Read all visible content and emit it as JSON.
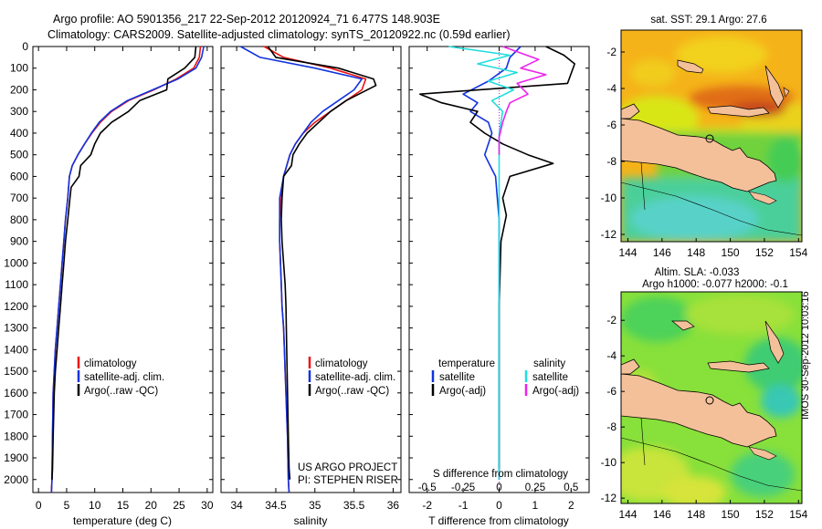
{
  "title": {
    "line1": "Argo profile: AO 5901356_217 22-Sep-2012 20120924_71 6.477S 148.903E",
    "line2": "Climatology: CARS2009. Satellite-adjusted climatology: synTS_20120922.nc (0.59d earlier)"
  },
  "colors": {
    "climatology": "#ee1111",
    "satellite": "#1133dd",
    "argo": "#000000",
    "argo_sal_adj": "#ee22ee",
    "sat_sal": "#22dddd",
    "land": "#f4c09a"
  },
  "credit": {
    "project": "US ARGO PROJECT",
    "pi": "PI: STEPHEN RISER"
  },
  "stamp": "IMOS 30-Sep-2012 10:03:16",
  "chart_data": [
    {
      "type": "line",
      "name": "temperature",
      "xlabel": "temperature (deg C)",
      "ylabel": "depth",
      "xlim": [
        -1,
        31
      ],
      "ylim": [
        2060,
        0
      ],
      "xticks": [
        "0",
        "5",
        "10",
        "15",
        "20",
        "25",
        "30"
      ],
      "xtick_values": [
        0,
        5,
        10,
        15,
        20,
        25,
        30
      ],
      "yticks": [
        "0",
        "100",
        "200",
        "300",
        "400",
        "500",
        "600",
        "700",
        "800",
        "900",
        "1000",
        "1100",
        "1200",
        "1300",
        "1400",
        "1500",
        "1600",
        "1700",
        "1800",
        "1900",
        "2000"
      ],
      "ytick_values": [
        0,
        100,
        200,
        300,
        400,
        500,
        600,
        700,
        800,
        900,
        1000,
        1100,
        1200,
        1300,
        1400,
        1500,
        1600,
        1700,
        1800,
        1900,
        2000
      ],
      "legend": [
        "climatology",
        "satellite-adj. clim.",
        "Argo(..raw -QC)"
      ],
      "series": [
        {
          "name": "climatology",
          "color": "#ee1111",
          "x": [
            28.8,
            28.6,
            27.6,
            24.5,
            20.5,
            16.0,
            13.0,
            11.0,
            9.5,
            8.2,
            7.0,
            6.0,
            5.5,
            5.2,
            4.8,
            4.5,
            4.2,
            3.9,
            3.6,
            3.3,
            3.0,
            2.8,
            2.6,
            2.5,
            2.4,
            2.3
          ],
          "y": [
            0,
            50,
            100,
            150,
            200,
            250,
            300,
            350,
            400,
            450,
            500,
            550,
            600,
            700,
            800,
            900,
            1000,
            1100,
            1200,
            1300,
            1400,
            1500,
            1600,
            1800,
            2000,
            2060
          ]
        },
        {
          "name": "satellite",
          "color": "#1133dd",
          "x": [
            29.4,
            29.0,
            28.0,
            24.8,
            20.3,
            15.8,
            12.8,
            10.8,
            9.4,
            8.2,
            7.0,
            6.0,
            5.5,
            5.2,
            4.8,
            4.5,
            4.2,
            3.9,
            3.6,
            3.3,
            3.0,
            2.8,
            2.6,
            2.5,
            2.4,
            2.3
          ],
          "y": [
            0,
            50,
            100,
            150,
            200,
            250,
            300,
            350,
            400,
            450,
            500,
            550,
            600,
            700,
            800,
            900,
            1000,
            1100,
            1200,
            1300,
            1400,
            1500,
            1600,
            1800,
            2000,
            2060
          ]
        },
        {
          "name": "argo",
          "color": "#000000",
          "x": [
            28.0,
            27.8,
            26.0,
            23.0,
            22.8,
            18.0,
            16.0,
            13.0,
            11.0,
            10.0,
            9.3,
            7.5,
            7.2,
            5.8,
            5.6,
            5.2,
            4.8,
            4.5,
            4.2,
            3.9,
            3.6,
            3.3,
            3.0,
            2.8,
            2.6,
            2.5,
            2.4
          ],
          "y": [
            0,
            50,
            100,
            150,
            200,
            250,
            300,
            350,
            400,
            450,
            500,
            550,
            600,
            650,
            700,
            800,
            900,
            1000,
            1100,
            1200,
            1300,
            1400,
            1500,
            1600,
            1800,
            1950,
            2000
          ]
        }
      ]
    },
    {
      "type": "line",
      "name": "salinity",
      "xlabel": "salinity",
      "xlim": [
        33.8,
        36.1
      ],
      "ylim": [
        2060,
        0
      ],
      "xticks": [
        "34",
        "34.5",
        "35",
        "35.5",
        "36"
      ],
      "xtick_values": [
        34,
        34.5,
        35,
        35.5,
        36
      ],
      "legend": [
        "climatology",
        "satellite-adj. clim.",
        "Argo(..raw -QC)"
      ],
      "series": [
        {
          "name": "climatology",
          "color": "#ee1111",
          "x": [
            34.35,
            34.6,
            35.2,
            35.65,
            35.6,
            35.4,
            35.2,
            35.0,
            34.85,
            34.75,
            34.68,
            34.6,
            34.57,
            34.55,
            34.55,
            34.56,
            34.57,
            34.58,
            34.6,
            34.61,
            34.62,
            34.63,
            34.64,
            34.65,
            34.66,
            34.67
          ],
          "y": [
            0,
            50,
            100,
            150,
            200,
            250,
            300,
            350,
            400,
            450,
            500,
            600,
            700,
            800,
            900,
            1000,
            1100,
            1200,
            1300,
            1400,
            1500,
            1600,
            1700,
            1800,
            2000,
            2060
          ]
        },
        {
          "name": "satellite",
          "color": "#1133dd",
          "x": [
            34.05,
            34.3,
            35.0,
            35.6,
            35.5,
            35.3,
            35.1,
            34.95,
            34.85,
            34.75,
            34.68,
            34.6,
            34.55,
            34.55,
            34.55,
            34.56,
            34.57,
            34.58,
            34.6,
            34.61,
            34.62,
            34.63,
            34.64,
            34.65,
            34.66,
            34.67
          ],
          "y": [
            0,
            50,
            100,
            150,
            200,
            250,
            300,
            350,
            400,
            450,
            500,
            600,
            700,
            800,
            900,
            1000,
            1100,
            1200,
            1300,
            1400,
            1500,
            1600,
            1700,
            1800,
            2000,
            2060
          ]
        },
        {
          "name": "argo",
          "color": "#000000",
          "x": [
            34.4,
            34.5,
            35.3,
            35.75,
            35.78,
            35.4,
            35.2,
            35.05,
            34.9,
            34.8,
            34.72,
            34.7,
            34.6,
            34.58,
            34.57,
            34.58,
            34.6,
            34.62,
            34.63,
            34.64,
            34.65,
            34.66,
            34.67,
            34.68
          ],
          "y": [
            0,
            50,
            100,
            150,
            180,
            250,
            300,
            350,
            400,
            450,
            500,
            550,
            600,
            700,
            800,
            900,
            1000,
            1100,
            1200,
            1400,
            1600,
            1800,
            1950,
            2000
          ]
        }
      ]
    },
    {
      "type": "line",
      "name": "difference",
      "xlabel": "T difference from climatology",
      "xlabel_top": "S difference from climatology",
      "xlim": [
        -2.5,
        2.5
      ],
      "ylim": [
        2060,
        0
      ],
      "xticks": [
        "-2",
        "-1",
        "0",
        "1",
        "2"
      ],
      "xtick_values": [
        -2,
        -1,
        0,
        1,
        2
      ],
      "sticks": [
        "-0.5",
        "-0.25",
        "0",
        "0.25",
        "0.5"
      ],
      "stick_values": [
        -2,
        -1,
        0,
        1,
        2
      ],
      "legend_titles": [
        "temperature",
        "salinity"
      ],
      "legend": [
        "satellite",
        "Argo(-adj)",
        "satellite",
        "Argo(-adj)"
      ],
      "series": [
        {
          "name": "T satellite",
          "color": "#1133dd",
          "x": [
            0.6,
            0.3,
            0.2,
            -0.3,
            -1.0,
            -0.6,
            -0.8,
            -0.3,
            -0.2,
            -0.3,
            -0.4,
            -0.25,
            -0.1,
            -0.05,
            0,
            0,
            0,
            0
          ],
          "y": [
            0,
            50,
            100,
            160,
            220,
            260,
            300,
            350,
            400,
            450,
            500,
            550,
            600,
            700,
            800,
            1000,
            1500,
            2000
          ]
        },
        {
          "name": "T argo",
          "color": "#000000",
          "x": [
            1.3,
            1.8,
            2.1,
            1.9,
            -2.2,
            -1.6,
            -0.6,
            -0.8,
            -0.4,
            0.1,
            0.8,
            1.5,
            0.3,
            0.1,
            0.2,
            0.05,
            0,
            0,
            0
          ],
          "y": [
            0,
            40,
            80,
            170,
            220,
            260,
            300,
            350,
            400,
            450,
            500,
            540,
            600,
            700,
            780,
            900,
            1200,
            1600,
            1950
          ]
        },
        {
          "name": "S satellite",
          "color": "#22dddd",
          "x": [
            -1.4,
            0.3,
            -0.6,
            0.5,
            -0.3,
            0.4,
            -0.2,
            0.1,
            0,
            0,
            0,
            0,
            0
          ],
          "y": [
            0,
            40,
            80,
            120,
            160,
            200,
            250,
            300,
            400,
            500,
            800,
            1500,
            2000
          ]
        },
        {
          "name": "S argo",
          "color": "#ee22ee",
          "x": [
            0.1,
            1.1,
            0.6,
            1.3,
            0.5,
            0.8,
            0.3,
            0.2,
            0.1,
            0,
            0
          ],
          "y": [
            0,
            60,
            100,
            130,
            170,
            220,
            260,
            300,
            350,
            420,
            500
          ]
        }
      ]
    },
    {
      "type": "heatmap",
      "name": "sst_map",
      "title": "sat. SST: 29.1 Argo: 27.6",
      "xticks": [
        "144",
        "146",
        "148",
        "150",
        "152",
        "154"
      ],
      "xtick_values": [
        144,
        146,
        148,
        150,
        152,
        154
      ],
      "yticks": [
        "-2",
        "-4",
        "-6",
        "-8",
        "-10",
        "-12"
      ],
      "ytick_values": [
        -2,
        -4,
        -6,
        -8,
        -10,
        -12
      ],
      "xlim": [
        143.6,
        154.2
      ],
      "ylim": [
        -0.8,
        -12.4
      ],
      "argo_position": [
        148.9,
        -6.48
      ]
    },
    {
      "type": "heatmap",
      "name": "sla_map",
      "title1": "Altim. SLA: -0.033",
      "title2": "Argo h1000: -0.077 h2000: -0.1",
      "xticks": [
        "144",
        "146",
        "148",
        "150",
        "152",
        "154"
      ],
      "xtick_values": [
        144,
        146,
        148,
        150,
        152,
        154
      ],
      "yticks": [
        "-2",
        "-4",
        "-6",
        "-8",
        "-10",
        "-12"
      ],
      "ytick_values": [
        -2,
        -4,
        -6,
        -8,
        -10,
        -12
      ],
      "xlim": [
        143.6,
        154.2
      ],
      "ylim": [
        -0.4,
        -12.3
      ],
      "argo_position": [
        148.9,
        -6.48
      ]
    }
  ]
}
